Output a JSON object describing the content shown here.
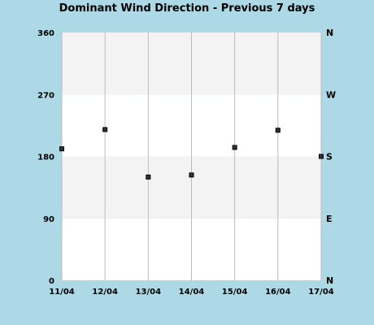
{
  "chart_data": {
    "type": "scatter",
    "title": "Dominant Wind Direction - Previous 7 days",
    "xlabel": "",
    "ylabel": "",
    "categories": [
      "11/04",
      "12/04",
      "13/04",
      "14/04",
      "15/04",
      "16/04",
      "17/04"
    ],
    "x": [
      0,
      1,
      2,
      3,
      4,
      5,
      6
    ],
    "values": [
      191,
      219,
      150,
      153,
      193,
      218,
      180
    ],
    "ylim": [
      0,
      360
    ],
    "yticks": [
      0,
      90,
      180,
      270,
      360
    ],
    "ytick_labels": [
      "0",
      "90",
      "180",
      "270",
      "360"
    ],
    "right_ticks": [
      0,
      90,
      180,
      270,
      360
    ],
    "right_labels": [
      "N",
      "E",
      "S",
      "W",
      "N"
    ],
    "grid": true,
    "legend": "none",
    "colors": {
      "background": "#add8e6",
      "band_light": "#ffffff",
      "band_shaded": "#f3f3f3",
      "grid": "#bcbcbc",
      "marker": "#000000"
    }
  }
}
